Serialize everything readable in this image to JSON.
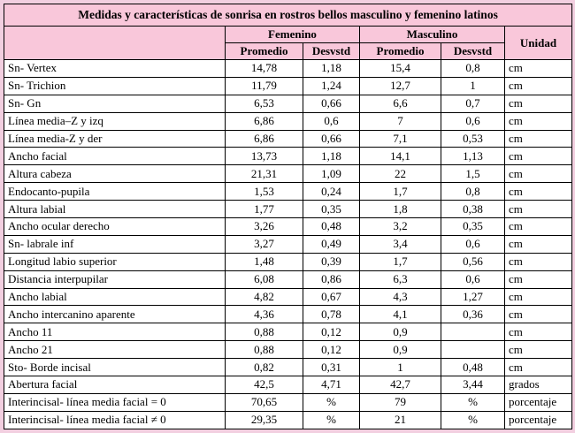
{
  "title": "Medidas y características de sonrisa en rostros bellos masculino y femenino latinos",
  "header": {
    "group_femenino": "Femenino",
    "group_masculino": "Masculino",
    "unidad": "Unidad",
    "femenino_promedio": "Promedio",
    "femenino_desvstd": "Desvstd",
    "masculino_promedio": "Promedio",
    "masculino_desvstd": "Desvstd"
  },
  "colors": {
    "header_bg": "#f9c7da",
    "outer_border": "#f2cfe0",
    "grid": "#000000",
    "cell_bg": "#ffffff"
  },
  "chart_data": {
    "type": "table",
    "title": "Medidas y características de sonrisa en rostros bellos masculino y femenino latinos",
    "columns": [
      "",
      "Femenino Promedio",
      "Femenino Desvstd",
      "Masculino Promedio",
      "Masculino Desvstd",
      "Unidad"
    ],
    "rows_ref": "rows"
  },
  "rows": [
    {
      "label": "Sn- Vertex",
      "f_prom": "14,78",
      "f_desv": "1,18",
      "m_prom": "15,4",
      "m_desv": "0,8",
      "unidad": "cm"
    },
    {
      "label": "Sn- Trichion",
      "f_prom": "11,79",
      "f_desv": "1,24",
      "m_prom": "12,7",
      "m_desv": "1",
      "unidad": "cm"
    },
    {
      "label": "Sn- Gn",
      "f_prom": "6,53",
      "f_desv": "0,66",
      "m_prom": "6,6",
      "m_desv": "0,7",
      "unidad": "cm"
    },
    {
      "label": "Línea media–Z y izq",
      "f_prom": "6,86",
      "f_desv": "0,6",
      "m_prom": "7",
      "m_desv": "0,6",
      "unidad": "cm"
    },
    {
      "label": "Línea media-Z y der",
      "f_prom": "6,86",
      "f_desv": "0,66",
      "m_prom": "7,1",
      "m_desv": "0,53",
      "unidad": "cm"
    },
    {
      "label": "Ancho facial",
      "f_prom": "13,73",
      "f_desv": "1,18",
      "m_prom": "14,1",
      "m_desv": "1,13",
      "unidad": "cm"
    },
    {
      "label": "Altura cabeza",
      "f_prom": "21,31",
      "f_desv": "1,09",
      "m_prom": "22",
      "m_desv": "1,5",
      "unidad": "cm"
    },
    {
      "label": "Endocanto-pupila",
      "f_prom": "1,53",
      "f_desv": "0,24",
      "m_prom": "1,7",
      "m_desv": "0,8",
      "unidad": "cm"
    },
    {
      "label": "Altura labial",
      "f_prom": "1,77",
      "f_desv": "0,35",
      "m_prom": "1,8",
      "m_desv": "0,38",
      "unidad": "cm"
    },
    {
      "label": "Ancho ocular derecho",
      "f_prom": "3,26",
      "f_desv": "0,48",
      "m_prom": "3,2",
      "m_desv": "0,35",
      "unidad": "cm"
    },
    {
      "label": "Sn- labrale inf",
      "f_prom": "3,27",
      "f_desv": "0,49",
      "m_prom": "3,4",
      "m_desv": "0,6",
      "unidad": "cm"
    },
    {
      "label": "Longitud labio superior",
      "f_prom": "1,48",
      "f_desv": "0,39",
      "m_prom": "1,7",
      "m_desv": "0,56",
      "unidad": "cm"
    },
    {
      "label": "Distancia interpupilar",
      "f_prom": "6,08",
      "f_desv": "0,86",
      "m_prom": "6,3",
      "m_desv": "0,6",
      "unidad": "cm"
    },
    {
      "label": "Ancho labial",
      "f_prom": "4,82",
      "f_desv": "0,67",
      "m_prom": "4,3",
      "m_desv": "1,27",
      "unidad": "cm"
    },
    {
      "label": "Ancho intercanino aparente",
      "f_prom": "4,36",
      "f_desv": "0,78",
      "m_prom": "4,1",
      "m_desv": "0,36",
      "unidad": "cm"
    },
    {
      "label": "Ancho 11",
      "f_prom": "0,88",
      "f_desv": "0,12",
      "m_prom": "0,9",
      "m_desv": "",
      "unidad": "cm"
    },
    {
      "label": "Ancho 21",
      "f_prom": "0,88",
      "f_desv": "0,12",
      "m_prom": "0,9",
      "m_desv": "",
      "unidad": "cm"
    },
    {
      "label": "Sto- Borde incisal",
      "f_prom": "0,82",
      "f_desv": "0,31",
      "m_prom": "1",
      "m_desv": "0,48",
      "unidad": "cm"
    },
    {
      "label": "Abertura facial",
      "f_prom": "42,5",
      "f_desv": "4,71",
      "m_prom": "42,7",
      "m_desv": "3,44",
      "unidad": "grados"
    },
    {
      "label": "Interincisal- línea media facial = 0",
      "f_prom": "70,65",
      "f_desv": "%",
      "m_prom": "79",
      "m_desv": "%",
      "unidad": "porcentaje"
    },
    {
      "label": "Interincisal- línea media facial ≠ 0",
      "f_prom": "29,35",
      "f_desv": "%",
      "m_prom": "21",
      "m_desv": "%",
      "unidad": "porcentaje"
    }
  ]
}
